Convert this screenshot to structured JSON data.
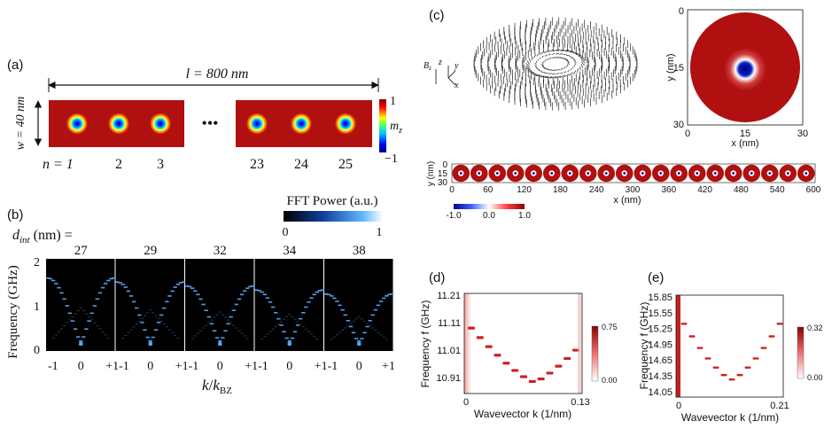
{
  "panels": {
    "a": {
      "label": "(a)",
      "length_label": "l = 800 nm",
      "width_label": "w = 40 nm",
      "ellipsis": "•••",
      "n_label": "n = 1",
      "index_labels": [
        "2",
        "3",
        "23",
        "24",
        "25"
      ],
      "colorbar": {
        "top": "1",
        "mid": "m",
        "mid_sub": "z",
        "bottom": "−1"
      }
    },
    "b": {
      "label": "(b)",
      "colorbar_title": "FFT Power (a.u.)",
      "colorbar_min": "0",
      "colorbar_max": "1",
      "dint_label": "d",
      "dint_sub": "int",
      "dint_unit": " (nm) =",
      "dint_values": [
        "27",
        "29",
        "32",
        "34",
        "38"
      ],
      "ylabel": "Frequency (GHz)",
      "yticks": [
        "2",
        "1",
        "0"
      ],
      "xticks": [
        "-1",
        "0",
        "+1-1",
        "0",
        "+1-1",
        "0",
        "+1-1",
        "0",
        "+1-1",
        "0",
        "+1"
      ],
      "xlabel_k": "k",
      "xlabel_sep": "/",
      "xlabel_kbz": "k",
      "xlabel_sub": "BZ"
    },
    "c": {
      "label": "(c)",
      "axis_icon": [
        "B",
        "z",
        "z",
        "y",
        "x"
      ],
      "map_yticks": [
        "0",
        "15",
        "30"
      ],
      "map_xticks": [
        "0",
        "15",
        "30"
      ],
      "map_ylabel": "y (nm)",
      "map_xlabel": "x (nm)",
      "strip_yticks": [
        "0",
        "15",
        "30"
      ],
      "strip_ylabel": "y (nm)",
      "strip_xticks": [
        "0",
        "60",
        "120",
        "180",
        "240",
        "300",
        "360",
        "420",
        "480",
        "540",
        "600"
      ],
      "strip_xlabel": "x (nm)",
      "strip_colorbar": [
        "-1.0",
        "0.0",
        "1.0"
      ]
    },
    "d": {
      "label": "(d)",
      "ylabel": "Frequency f (GHz)",
      "yticks": [
        "11.21",
        "11.11",
        "11.01",
        "10.91"
      ],
      "xticks": [
        "0",
        "0.13"
      ],
      "xlabel": "Wavevector k (1/nm)",
      "colorbar": [
        "0.75",
        "0.00"
      ]
    },
    "e": {
      "label": "(e)",
      "ylabel": "Frequency f (GHz)",
      "yticks": [
        "15.85",
        "15.55",
        "15.25",
        "14.95",
        "14.65",
        "14.35",
        "14.05"
      ],
      "xticks": [
        "0",
        "0.21"
      ],
      "xlabel": "Wavevector k (1/nm)",
      "colorbar": [
        "0.32",
        "0.00"
      ]
    }
  },
  "colors": {
    "magnetization_background": "#b01010",
    "fft_background": "#000000",
    "fft_branch": "#5aaeff",
    "dispersion_line": "#d22020",
    "colorbar_red": "#b00000",
    "colorbar_blue": "#000090"
  }
}
